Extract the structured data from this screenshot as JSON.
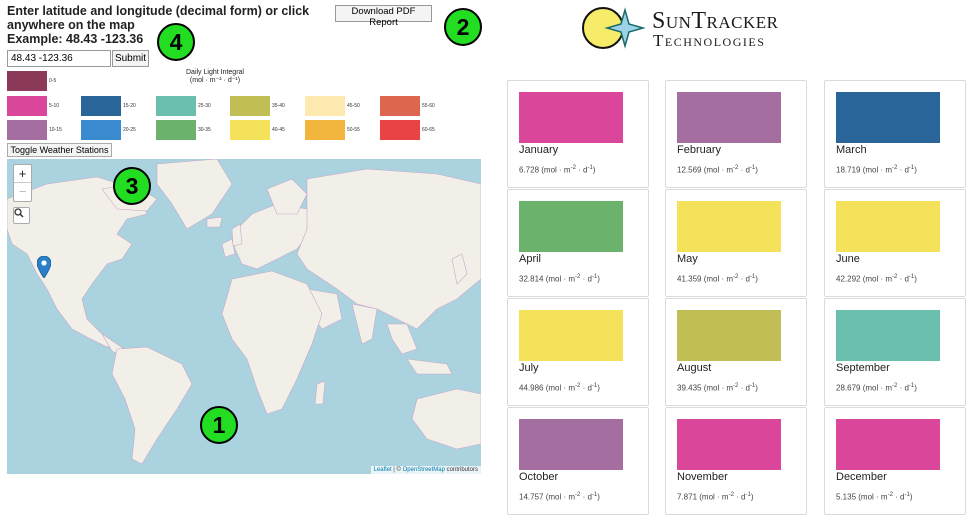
{
  "instructions": {
    "line1": "Enter latitude and longitude (decimal form) or click",
    "line2": "anywhere on the map",
    "line3": "Example: 48.43 -123.36"
  },
  "coord_input": {
    "value": "48.43 -123.36"
  },
  "submit_label": "Submit",
  "pdf_button_label": "Download PDF Report",
  "legend": {
    "title_line1": "Daily Light Integral",
    "title_line2": "(mol · m⁻² · d⁻¹)",
    "items": [
      {
        "label": "0-5",
        "color": "#8b3a5a"
      },
      {
        "label": "5-10",
        "color": "#d9469a"
      },
      {
        "label": "10-15",
        "color": "#a56ea0"
      },
      {
        "label": "15-20",
        "color": "#2a659a"
      },
      {
        "label": "20-25",
        "color": "#3a8ad0"
      },
      {
        "label": "25-30",
        "color": "#6bbfad"
      },
      {
        "label": "30-35",
        "color": "#6bb26d"
      },
      {
        "label": "35-40",
        "color": "#c0be55"
      },
      {
        "label": "40-45",
        "color": "#f4e25a"
      },
      {
        "label": "45-50",
        "color": "#fde8b0"
      },
      {
        "label": "50-55",
        "color": "#f2b53d"
      },
      {
        "label": "55-60",
        "color": "#dd6650"
      },
      {
        "label": "60-65",
        "color": "#e84444"
      }
    ]
  },
  "toggle_weather_label": "Toggle Weather Stations",
  "map": {
    "zoom_in": "+",
    "zoom_out": "−",
    "attribution_link1": "Leaflet",
    "attribution_sep": " | © ",
    "attribution_link2": "OpenStreetMap",
    "attribution_tail": " contributors"
  },
  "callouts": {
    "map": "1",
    "pdf": "2",
    "weather": "3",
    "input": "4"
  },
  "logo": {
    "line1": "SunTracker",
    "line2": "Technologies"
  },
  "months": [
    {
      "name": "January",
      "value": "6.728",
      "color": "#d9469a"
    },
    {
      "name": "February",
      "value": "12.569",
      "color": "#a56ea0"
    },
    {
      "name": "March",
      "value": "18.719",
      "color": "#2a659a"
    },
    {
      "name": "April",
      "value": "32.814",
      "color": "#6bb26d"
    },
    {
      "name": "May",
      "value": "41.359",
      "color": "#f4e25a"
    },
    {
      "name": "June",
      "value": "42.292",
      "color": "#f4e25a"
    },
    {
      "name": "July",
      "value": "44.986",
      "color": "#f4e25a"
    },
    {
      "name": "August",
      "value": "39.435",
      "color": "#c0be55"
    },
    {
      "name": "September",
      "value": "28.679",
      "color": "#6bbfad"
    },
    {
      "name": "October",
      "value": "14.757",
      "color": "#a56ea0"
    },
    {
      "name": "November",
      "value": "7.871",
      "color": "#d9469a"
    },
    {
      "name": "December",
      "value": "5.135",
      "color": "#d9469a"
    }
  ],
  "unit": {
    "prefix": "(mol · m",
    "exp1": "-2",
    "mid": " · d",
    "exp2": "-1",
    "suffix": ")"
  }
}
